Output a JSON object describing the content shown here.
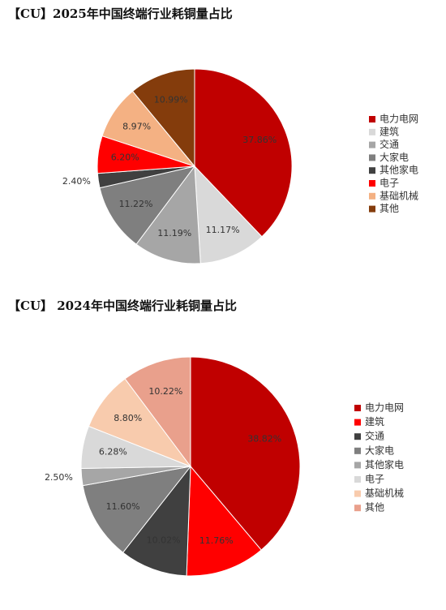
{
  "chart_data": [
    {
      "type": "pie",
      "title": "【CU】2025年中国终端行业耗铜量占比",
      "categories": [
        "电力电网",
        "建筑",
        "交通",
        "大家电",
        "其他家电",
        "电子",
        "基础机械",
        "其他"
      ],
      "values": [
        37.86,
        11.17,
        11.19,
        11.22,
        2.4,
        6.2,
        8.97,
        10.99
      ],
      "value_labels": [
        "37.86%",
        "11.17%",
        "11.19%",
        "11.22%",
        "2.40%",
        "6.20%",
        "8.97%",
        "10.99%"
      ],
      "colors": [
        "#c00000",
        "#d9d9d9",
        "#a6a6a6",
        "#7f7f7f",
        "#404040",
        "#ff0000",
        "#f4b183",
        "#843c0c"
      ]
    },
    {
      "type": "pie",
      "title": "【CU】 2024年中国终端行业耗铜量占比",
      "categories": [
        "电力电网",
        "建筑",
        "交通",
        "大家电",
        "其他家电",
        "电子",
        "基础机械",
        "其他"
      ],
      "values": [
        38.82,
        11.76,
        10.02,
        11.6,
        2.5,
        6.28,
        8.8,
        10.22
      ],
      "value_labels": [
        "38.82%",
        "11.76%",
        "10.02%",
        "11.60%",
        "2.50%",
        "6.28%",
        "8.80%",
        "10.22%"
      ],
      "colors": [
        "#c00000",
        "#ff0000",
        "#404040",
        "#7f7f7f",
        "#a6a6a6",
        "#d9d9d9",
        "#f8cbad",
        "#e9a08c"
      ]
    }
  ]
}
